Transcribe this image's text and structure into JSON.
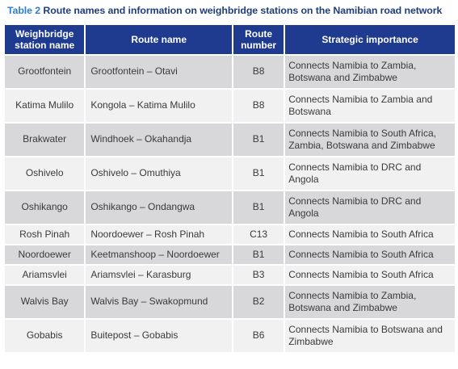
{
  "caption": {
    "label": "Table 2",
    "title": "Route names and information on weighbridge stations on the Namibian road network"
  },
  "headers": {
    "station": "Weighbridge station name",
    "route_name": "Route name",
    "route_number": "Route number",
    "importance": "Strategic importance"
  },
  "rows": [
    {
      "station": "Grootfontein",
      "route_name": "Grootfontein – Otavi",
      "route_number": "B8",
      "importance": "Connects Namibia to Zambia, Botswana and Zimbabwe"
    },
    {
      "station": "Katima Mulilo",
      "route_name": "Kongola – Katima Mulilo",
      "route_number": "B8",
      "importance": "Connects Namibia to Zambia and Botswana"
    },
    {
      "station": "Brakwater",
      "route_name": "Windhoek – Okahandja",
      "route_number": "B1",
      "importance": "Connects Namibia to South Africa, Zambia, Botswana and Zimbabwe"
    },
    {
      "station": "Oshivelo",
      "route_name": "Oshivelo – Omuthiya",
      "route_number": "B1",
      "importance": "Connects Namibia to DRC and Angola"
    },
    {
      "station": "Oshikango",
      "route_name": "Oshikango – Ondangwa",
      "route_number": "B1",
      "importance": "Connects Namibia to DRC and Angola"
    },
    {
      "station": "Rosh Pinah",
      "route_name": "Noordoewer – Rosh Pinah",
      "route_number": "C13",
      "importance": "Connects Namibia to South Africa"
    },
    {
      "station": "Noordoewer",
      "route_name": "Keetmanshoop – Noordoewer",
      "route_number": "B1",
      "importance": "Connects Namibia to South Africa"
    },
    {
      "station": "Ariamsvlei",
      "route_name": "Ariamsvlei – Karasburg",
      "route_number": "B3",
      "importance": "Connects Namibia to South Africa"
    },
    {
      "station": "Walvis Bay",
      "route_name": "Walvis Bay – Swakopmund",
      "route_number": "B2",
      "importance": "Connects Namibia to Zambia, Botswana and Zimbabwe"
    },
    {
      "station": "Gobabis",
      "route_name": "Buitepost – Gobabis",
      "route_number": "B6",
      "importance": "Connects Namibia to Botswana and Zimbabwe"
    }
  ]
}
